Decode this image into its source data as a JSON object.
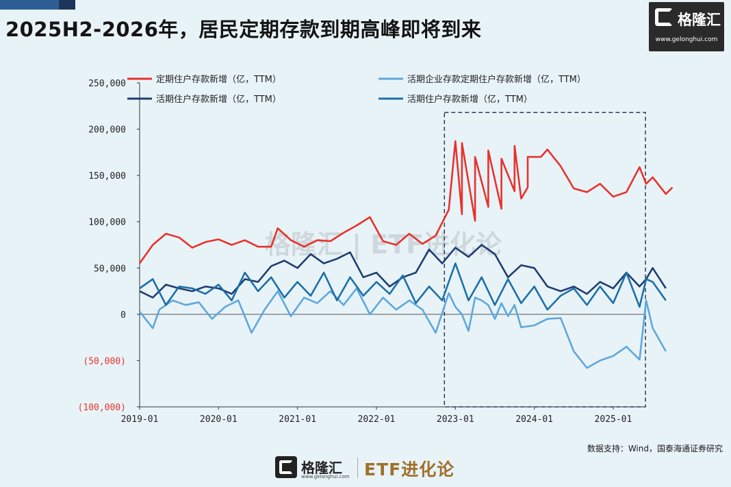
{
  "header": {
    "title": "2025H2-2026年，居民定期存款到期高峰即将到来"
  },
  "brand": {
    "name": "格隆汇",
    "url": "www.gelonghui.com",
    "footer_url": "www.gelonghui.com",
    "column": "ETF进化论"
  },
  "source": "数据支持：Wind，国泰海通证券研究",
  "chart_data": {
    "type": "line",
    "title": "",
    "xlabel": "",
    "ylabel": "",
    "ylim": [
      -100000,
      250000
    ],
    "yticks": [
      -100000,
      -50000,
      0,
      50000,
      100000,
      150000,
      200000,
      250000
    ],
    "ytick_labels": [
      "(100,000)",
      "(50,000)",
      "0",
      "50,000",
      "100,000",
      "150,000",
      "200,000",
      "250,000"
    ],
    "xlim": [
      "2019-01",
      "2025-06"
    ],
    "xticks": [
      "2019-01",
      "2020-01",
      "2021-01",
      "2022-01",
      "2023-01",
      "2024-01",
      "2025-01"
    ],
    "grid": false,
    "legend": "top",
    "highlight_range": {
      "x": [
        "2023-01",
        "2025-06"
      ],
      "y": [
        -100000,
        218000
      ]
    },
    "series": [
      {
        "name": "定期住户存款新增（亿，TTM）",
        "color": "#e8322b",
        "points": [
          [
            "2019-01",
            55000
          ],
          [
            "2019-03",
            75000
          ],
          [
            "2019-05",
            87000
          ],
          [
            "2019-07",
            83000
          ],
          [
            "2019-09",
            72000
          ],
          [
            "2019-11",
            78000
          ],
          [
            "2020-01",
            81000
          ],
          [
            "2020-03",
            75000
          ],
          [
            "2020-05",
            80000
          ],
          [
            "2020-07",
            73000
          ],
          [
            "2020-09",
            73000
          ],
          [
            "2020-10",
            93000
          ],
          [
            "2020-12",
            80000
          ],
          [
            "2021-02",
            73000
          ],
          [
            "2021-04",
            80000
          ],
          [
            "2021-06",
            79000
          ],
          [
            "2021-08",
            88000
          ],
          [
            "2021-10",
            96000
          ],
          [
            "2021-12",
            105000
          ],
          [
            "2022-02",
            79000
          ],
          [
            "2022-04",
            75000
          ],
          [
            "2022-06",
            87000
          ],
          [
            "2022-08",
            76000
          ],
          [
            "2022-10",
            85000
          ],
          [
            "2022-12",
            113000
          ],
          [
            "2023-02",
            108000
          ],
          [
            "2023-04",
            101000
          ],
          [
            "2023-06",
            116000
          ],
          [
            "2023-08",
            114000
          ],
          [
            "2023-10",
            133000
          ],
          [
            "2023-11",
            125000
          ],
          [
            "2023-12",
            137000
          ],
          [
            "2023-02",
            140000
          ],
          [
            "2023-01",
            187000
          ],
          [
            "2023-02",
            185000
          ],
          [
            "2023-04",
            170000
          ],
          [
            "2023-06",
            177000
          ],
          [
            "2023-08",
            168000
          ],
          [
            "2023-10",
            182000
          ],
          [
            "2023-12",
            170000
          ],
          [
            "2024-02",
            170000
          ],
          [
            "2024-03",
            178000
          ],
          [
            "2024-05",
            160000
          ],
          [
            "2024-07",
            136000
          ],
          [
            "2024-09",
            132000
          ],
          [
            "2024-11",
            141000
          ],
          [
            "2025-01",
            127000
          ],
          [
            "2025-03",
            132000
          ],
          [
            "2025-05",
            159000
          ],
          [
            "2025-07",
            148000
          ],
          [
            "2025-09",
            130000
          ],
          [
            "2025-10",
            137000
          ],
          [
            "2025-06",
            141000
          ]
        ]
      },
      {
        "name": "活期企业存款定期住户存款新增（亿，TTM）",
        "color": "#5ea7dd",
        "points": [
          [
            "2019-01",
            3000
          ],
          [
            "2019-03",
            -15000
          ],
          [
            "2019-04",
            5000
          ],
          [
            "2019-06",
            15000
          ],
          [
            "2019-08",
            10000
          ],
          [
            "2019-10",
            13000
          ],
          [
            "2019-12",
            -5000
          ],
          [
            "2020-02",
            8000
          ],
          [
            "2020-04",
            15000
          ],
          [
            "2020-06",
            -20000
          ],
          [
            "2020-08",
            5000
          ],
          [
            "2020-10",
            25000
          ],
          [
            "2020-12",
            -2000
          ],
          [
            "2021-02",
            18000
          ],
          [
            "2021-04",
            12000
          ],
          [
            "2021-06",
            25000
          ],
          [
            "2021-08",
            10000
          ],
          [
            "2021-10",
            28000
          ],
          [
            "2021-12",
            0
          ],
          [
            "2022-02",
            18000
          ],
          [
            "2022-04",
            5000
          ],
          [
            "2022-06",
            15000
          ],
          [
            "2022-08",
            5000
          ],
          [
            "2022-10",
            -20000
          ],
          [
            "2022-12",
            23000
          ],
          [
            "2023-02",
            0
          ],
          [
            "2023-04",
            18000
          ],
          [
            "2023-06",
            10000
          ],
          [
            "2023-08",
            12000
          ],
          [
            "2023-10",
            10000
          ],
          [
            "2023-01",
            8000
          ],
          [
            "2023-03",
            -18000
          ],
          [
            "2023-05",
            15000
          ],
          [
            "2023-07",
            -5000
          ],
          [
            "2023-09",
            -2000
          ],
          [
            "2023-11",
            -14000
          ],
          [
            "2024-01",
            -12000
          ],
          [
            "2024-03",
            -5000
          ],
          [
            "2024-05",
            -4000
          ],
          [
            "2024-07",
            -40000
          ],
          [
            "2024-09",
            -58000
          ],
          [
            "2024-11",
            -50000
          ],
          [
            "2025-01",
            -45000
          ],
          [
            "2025-03",
            -35000
          ],
          [
            "2025-05",
            -49000
          ],
          [
            "2025-07",
            -15000
          ],
          [
            "2025-09",
            -40000
          ],
          [
            "2025-06",
            15000
          ]
        ]
      },
      {
        "name": "活期住户存款新增（亿，TTM）",
        "color": "#1f3d72",
        "points": [
          [
            "2019-01",
            25000
          ],
          [
            "2019-03",
            18000
          ],
          [
            "2019-05",
            32000
          ],
          [
            "2019-07",
            28000
          ],
          [
            "2019-09",
            25000
          ],
          [
            "2019-11",
            30000
          ],
          [
            "2020-01",
            28000
          ],
          [
            "2020-03",
            22000
          ],
          [
            "2020-05",
            38000
          ],
          [
            "2020-07",
            35000
          ],
          [
            "2020-09",
            52000
          ],
          [
            "2020-11",
            58000
          ],
          [
            "2021-01",
            50000
          ],
          [
            "2021-03",
            65000
          ],
          [
            "2021-05",
            55000
          ],
          [
            "2021-07",
            60000
          ],
          [
            "2021-09",
            67000
          ],
          [
            "2021-11",
            40000
          ],
          [
            "2022-01",
            45000
          ],
          [
            "2022-03",
            30000
          ],
          [
            "2022-05",
            40000
          ],
          [
            "2022-07",
            45000
          ],
          [
            "2022-09",
            70000
          ],
          [
            "2022-11",
            55000
          ],
          [
            "2023-01",
            72000
          ],
          [
            "2023-03",
            62000
          ],
          [
            "2023-05",
            75000
          ],
          [
            "2023-07",
            65000
          ],
          [
            "2023-09",
            40000
          ],
          [
            "2023-11",
            53000
          ],
          [
            "2024-01",
            50000
          ],
          [
            "2024-03",
            30000
          ],
          [
            "2024-05",
            25000
          ],
          [
            "2024-07",
            30000
          ],
          [
            "2024-09",
            22000
          ],
          [
            "2024-11",
            35000
          ],
          [
            "2025-01",
            28000
          ],
          [
            "2025-03",
            45000
          ],
          [
            "2025-05",
            30000
          ],
          [
            "2025-07",
            50000
          ],
          [
            "2025-09",
            28000
          ],
          [
            "2025-06",
            38000
          ]
        ]
      },
      {
        "name": "活期住户存款新增（亿，TTM）",
        "color": "#1b6fa8",
        "points": [
          [
            "2019-01",
            28000
          ],
          [
            "2019-03",
            38000
          ],
          [
            "2019-05",
            10000
          ],
          [
            "2019-07",
            30000
          ],
          [
            "2019-09",
            28000
          ],
          [
            "2019-11",
            22000
          ],
          [
            "2020-01",
            32000
          ],
          [
            "2020-03",
            15000
          ],
          [
            "2020-05",
            45000
          ],
          [
            "2020-07",
            25000
          ],
          [
            "2020-09",
            40000
          ],
          [
            "2020-11",
            18000
          ],
          [
            "2021-01",
            35000
          ],
          [
            "2021-03",
            20000
          ],
          [
            "2021-05",
            45000
          ],
          [
            "2021-07",
            15000
          ],
          [
            "2021-09",
            40000
          ],
          [
            "2021-11",
            20000
          ],
          [
            "2022-01",
            35000
          ],
          [
            "2022-03",
            22000
          ],
          [
            "2022-05",
            42000
          ],
          [
            "2022-07",
            12000
          ],
          [
            "2022-09",
            30000
          ],
          [
            "2022-11",
            15000
          ],
          [
            "2023-01",
            55000
          ],
          [
            "2023-03",
            15000
          ],
          [
            "2023-05",
            40000
          ],
          [
            "2023-07",
            10000
          ],
          [
            "2023-09",
            38000
          ],
          [
            "2023-11",
            12000
          ],
          [
            "2024-01",
            30000
          ],
          [
            "2024-03",
            5000
          ],
          [
            "2024-05",
            20000
          ],
          [
            "2024-07",
            28000
          ],
          [
            "2024-09",
            10000
          ],
          [
            "2024-11",
            30000
          ],
          [
            "2025-01",
            12000
          ],
          [
            "2025-03",
            45000
          ],
          [
            "2025-05",
            8000
          ],
          [
            "2025-07",
            35000
          ],
          [
            "2025-09",
            15000
          ],
          [
            "2025-06",
            38000
          ]
        ]
      }
    ]
  }
}
